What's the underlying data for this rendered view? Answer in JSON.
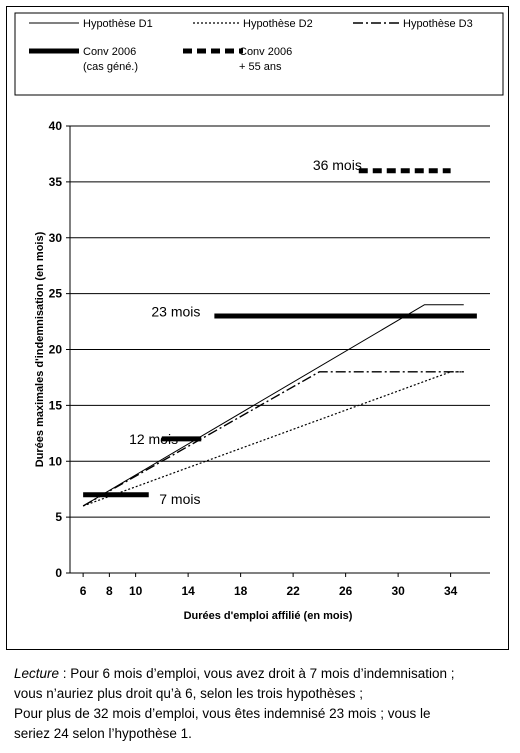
{
  "chart_data": {
    "type": "line",
    "xlabel": "Durées d'emploi affilié (en mois)",
    "ylabel": "Durées maximales d'indemnisation (en mois)",
    "xlim": [
      5,
      37
    ],
    "ylim": [
      0,
      40
    ],
    "xticks": [
      6,
      8,
      10,
      14,
      18,
      22,
      26,
      30,
      34
    ],
    "yticks": [
      0,
      5,
      10,
      15,
      20,
      25,
      30,
      35,
      40
    ],
    "grid": "horizontal",
    "legend_position": "top",
    "series": [
      {
        "name": "Hypothèse D1",
        "style": "thin-solid",
        "color": "#000000",
        "x": [
          6,
          32,
          35
        ],
        "y": [
          6,
          24,
          24
        ]
      },
      {
        "name": "Hypothèse D2",
        "style": "dotted",
        "color": "#000000",
        "x": [
          6,
          34,
          35
        ],
        "y": [
          6,
          18,
          18
        ]
      },
      {
        "name": "Hypothèse D3",
        "style": "dash-dot",
        "color": "#000000",
        "x": [
          6,
          24,
          35
        ],
        "y": [
          6,
          18,
          18
        ]
      },
      {
        "name": "Conv 2006 (cas géné.)",
        "legend_lines": [
          "Conv 2006",
          "(cas géné.)"
        ],
        "style": "thick-solid",
        "color": "#000000",
        "segments": [
          {
            "x": [
              6,
              11
            ],
            "y": [
              7,
              7
            ]
          },
          {
            "x": [
              12,
              15
            ],
            "y": [
              12,
              12
            ]
          },
          {
            "x": [
              16,
              36
            ],
            "y": [
              23,
              23
            ]
          }
        ]
      },
      {
        "name": "Conv 2006 + 55 ans",
        "legend_lines": [
          "Conv 2006",
          "+ 55 ans"
        ],
        "style": "thick-dashed",
        "color": "#000000",
        "segments": [
          {
            "x": [
              27,
              34
            ],
            "y": [
              36,
              36
            ]
          }
        ]
      }
    ],
    "annotations": [
      {
        "text": "36 mois",
        "x": 23.5,
        "y": 36.5
      },
      {
        "text": "23 mois",
        "x": 11.2,
        "y": 23.4
      },
      {
        "text": "12 mois",
        "x": 9.5,
        "y": 12
      },
      {
        "text": "7 mois",
        "x": 11.8,
        "y": 6.6
      }
    ]
  },
  "caption": {
    "lecture_label": "Lecture",
    "lines": [
      " : Pour 6 mois d’emploi, vous avez droit à 7 mois d’indemnisation ;",
      "vous n’auriez plus droit qu’à 6, selon les trois hypothèses ;",
      "Pour plus de 32 mois d’emploi, vous êtes indemnisé 23 mois ; vous le",
      "seriez 24 selon l’hypothèse 1."
    ]
  }
}
